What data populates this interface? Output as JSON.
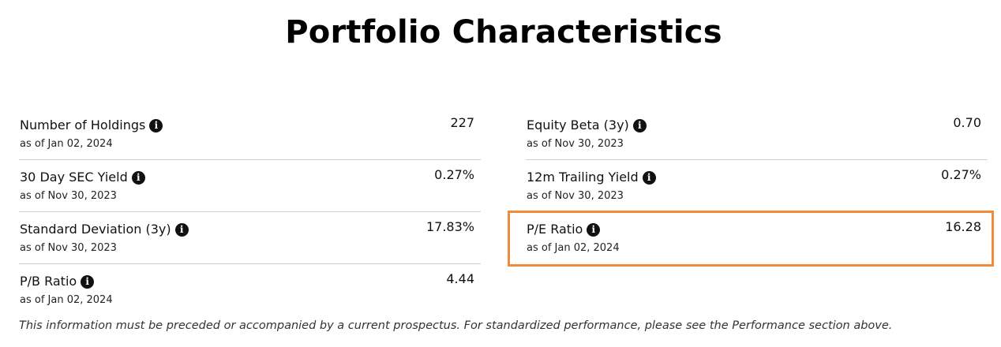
{
  "title": "Portfolio Characteristics",
  "left_column": [
    {
      "label": "Number of Holdings",
      "as_of": "as of Jan 02, 2024",
      "value": "227"
    },
    {
      "label": "30 Day SEC Yield",
      "as_of": "as of Nov 30, 2023",
      "value": "0.27%"
    },
    {
      "label": "Standard Deviation (3y)",
      "as_of": "as of Nov 30, 2023",
      "value": "17.83%"
    },
    {
      "label": "P/B Ratio",
      "as_of": "as of Jan 02, 2024",
      "value": "4.44"
    }
  ],
  "right_column": [
    {
      "label": "Equity Beta (3y)",
      "as_of": "as of Nov 30, 2023",
      "value": "0.70"
    },
    {
      "label": "12m Trailing Yield",
      "as_of": "as of Nov 30, 2023",
      "value": "0.27%"
    },
    {
      "label": "P/E Ratio",
      "as_of": "as of Jan 02, 2024",
      "value": "16.28"
    }
  ],
  "info_icon_glyph": "i",
  "highlight_color": "#ee8a3a",
  "disclaimer": "This information must be preceded or accompanied by a current prospectus. For standardized performance, please see the Performance section above."
}
